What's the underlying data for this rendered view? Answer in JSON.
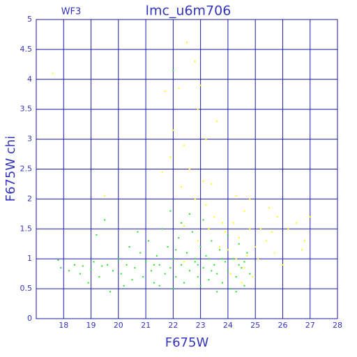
{
  "chart_data": {
    "type": "scatter",
    "title": "lmc_u6m706",
    "subtitle": "WF3",
    "x_label": "F675W",
    "y_label": "F675W chi",
    "xlim": [
      17,
      28
    ],
    "ylim": [
      0,
      5
    ],
    "xticks": [
      18,
      19,
      20,
      21,
      22,
      23,
      24,
      25,
      26,
      27,
      28
    ],
    "yticks": [
      0,
      0.5,
      1,
      1.5,
      2,
      2.5,
      3,
      3.5,
      4,
      4.5,
      5
    ],
    "grid": true,
    "series": [
      {
        "color": "#22e022",
        "x": [
          17.8,
          17.9,
          18.2,
          18.4,
          18.6,
          18.7,
          18.9,
          19.0,
          19.1,
          19.2,
          19.3,
          19.4,
          19.5,
          19.6,
          19.8,
          20.0,
          20.1,
          20.3,
          20.4,
          20.5,
          20.6,
          20.8,
          20.9,
          21.0,
          21.1,
          21.2,
          21.3,
          21.4,
          21.5,
          21.6,
          21.7,
          21.8,
          21.9,
          22.0,
          22.0,
          22.1,
          22.2,
          22.3,
          22.4,
          22.5,
          22.6,
          22.7,
          22.8,
          22.9,
          23.0,
          23.0,
          23.1,
          23.2,
          23.3,
          23.4,
          23.5,
          23.6,
          23.7,
          23.8,
          23.9,
          24.0,
          24.0,
          24.1,
          24.2,
          24.3,
          24.4,
          24.5,
          24.6,
          24.7,
          24.8,
          21.5,
          22.3,
          22.6,
          23.1,
          21.9,
          20.7,
          19.7,
          22.0,
          23.6,
          24.3,
          20.2,
          22.8,
          23.4,
          23.8,
          24.4,
          21.3,
          22.1,
          22.9,
          23.3,
          24.6
        ],
        "y": [
          0.98,
          0.85,
          0.8,
          0.9,
          0.75,
          0.88,
          0.6,
          0.82,
          0.95,
          1.4,
          0.7,
          0.88,
          1.65,
          0.9,
          0.8,
          1.0,
          0.75,
          0.9,
          1.2,
          0.65,
          0.85,
          1.1,
          0.7,
          0.95,
          1.3,
          0.8,
          0.6,
          1.05,
          0.9,
          1.5,
          0.75,
          1.2,
          0.85,
          4.15,
          1.0,
          0.7,
          1.35,
          0.9,
          0.6,
          1.1,
          0.8,
          1.45,
          0.95,
          0.7,
          1.2,
          0.55,
          0.85,
          1.05,
          0.65,
          1.3,
          0.9,
          0.75,
          1.15,
          0.6,
          0.95,
          1.4,
          0.8,
          0.5,
          1.0,
          0.7,
          1.25,
          0.85,
          0.55,
          1.1,
          0.75,
          0.55,
          1.6,
          1.75,
          1.65,
          1.8,
          1.45,
          0.45,
          0.5,
          0.45,
          0.45,
          0.55,
          1.0,
          0.8,
          1.0,
          0.9,
          0.9,
          1.15,
          0.9,
          1.0,
          0.95
        ]
      },
      {
        "color": "#ffff00",
        "x": [
          22.5,
          22.8,
          22.2,
          21.7,
          23.0,
          22.9,
          22.0,
          23.2,
          22.4,
          21.9,
          23.6,
          22.6,
          23.1,
          21.6,
          22.3,
          23.4,
          22.8,
          24.3,
          24.8,
          25.5,
          26.2,
          26.8,
          26.5,
          25.8,
          25.2,
          25.0,
          24.6,
          24.2,
          23.9,
          23.5,
          23.2,
          24.0,
          24.4,
          24.7,
          25.1,
          25.4,
          25.7,
          26.0,
          24.9,
          24.5,
          24.1,
          23.7,
          23.3,
          22.9,
          22.4,
          24.8,
          25.6,
          19.5,
          26.7,
          27.0,
          17.6,
          22.4,
          24.3,
          24.6,
          23.8
        ],
        "y": [
          4.62,
          4.3,
          3.85,
          3.8,
          3.9,
          3.5,
          3.15,
          3.0,
          2.9,
          2.7,
          3.3,
          2.5,
          2.3,
          2.45,
          2.2,
          2.25,
          2.0,
          2.05,
          2.0,
          1.85,
          1.5,
          1.3,
          1.6,
          1.7,
          1.5,
          1.2,
          1.8,
          1.6,
          1.45,
          1.7,
          1.9,
          1.15,
          1.35,
          1.05,
          1.0,
          1.3,
          1.1,
          0.9,
          0.7,
          0.6,
          0.75,
          1.2,
          1.5,
          1.3,
          1.55,
          1.5,
          1.45,
          2.05,
          1.15,
          1.7,
          4.1,
          0.95,
          1.0,
          0.85,
          1.6
        ]
      }
    ]
  }
}
